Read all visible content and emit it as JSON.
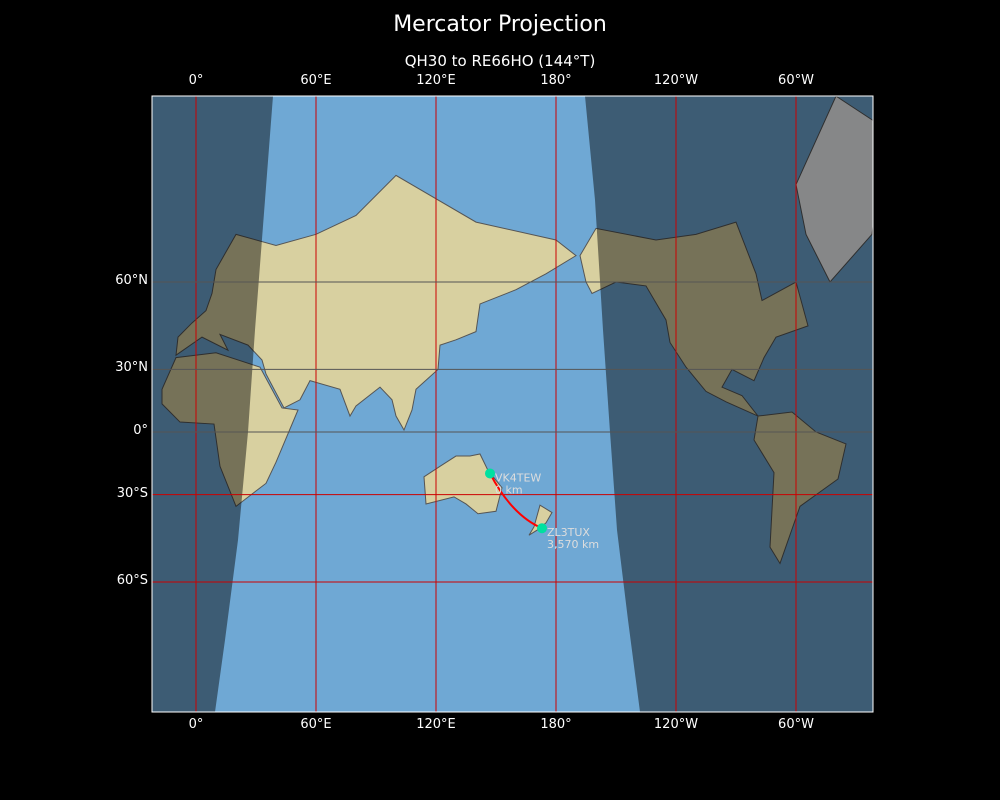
{
  "title": "Mercator Projection",
  "subtitle": "QH30 to RE66HO (144°T)",
  "x_ticks": [
    {
      "label": "0°",
      "lon": 0
    },
    {
      "label": "60°E",
      "lon": 60
    },
    {
      "label": "120°E",
      "lon": 120
    },
    {
      "label": "180°",
      "lon": 180
    },
    {
      "label": "120°W",
      "lon": 240
    },
    {
      "label": "60°W",
      "lon": 300
    }
  ],
  "y_ticks": [
    {
      "label": "60°N",
      "lat": 60
    },
    {
      "label": "30°N",
      "lat": 30
    },
    {
      "label": "0°",
      "lat": 0
    },
    {
      "label": "30°S",
      "lat": -30
    },
    {
      "label": "60°S",
      "lat": -60
    }
  ],
  "extent": {
    "lon": [
      -22,
      338.5
    ],
    "lat": [
      -80,
      84
    ]
  },
  "stations": [
    {
      "call": "VK4TEW",
      "distance": "0 km",
      "lon": 147,
      "lat": -20.4
    },
    {
      "call": "ZL3TUX",
      "distance": "3,570 km",
      "lon": 173,
      "lat": -43.5
    }
  ],
  "colors": {
    "path": "#ff0000",
    "station": "#00e0a0",
    "grid": "#cc0000",
    "ocean": "#6fa8d4",
    "land": "#d8d0a0",
    "night": "#000000"
  }
}
